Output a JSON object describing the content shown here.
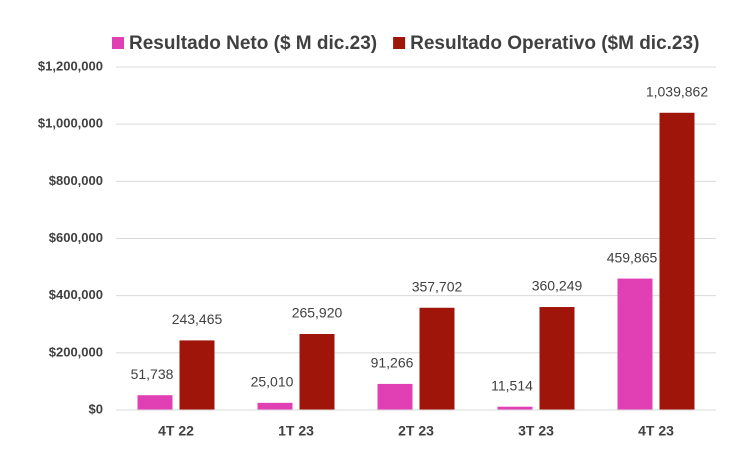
{
  "chart_data": {
    "type": "bar",
    "categories": [
      "4T 22",
      "1T 23",
      "2T 23",
      "3T 23",
      "4T 23"
    ],
    "series": [
      {
        "name": "Resultado Neto ($ M dic.23)",
        "color": "#e040b4",
        "values": [
          51738,
          25010,
          91266,
          11514,
          459865
        ],
        "value_labels": [
          "51,738",
          "25,010",
          "91,266",
          "11,514",
          "459,865"
        ]
      },
      {
        "name": "Resultado Operativo ($M dic.23)",
        "color": "#a0150a",
        "values": [
          243465,
          265920,
          357702,
          360249,
          1039862
        ],
        "value_labels": [
          "243,465",
          "265,920",
          "357,702",
          "360,249",
          "1,039,862"
        ]
      }
    ],
    "ylim": [
      0,
      1200000
    ],
    "yticks": [
      {
        "value": 0,
        "label": "$0"
      },
      {
        "value": 200000,
        "label": "$200,000"
      },
      {
        "value": 400000,
        "label": "$400,000"
      },
      {
        "value": 600000,
        "label": "$600,000"
      },
      {
        "value": 800000,
        "label": "$800,000"
      },
      {
        "value": 1000000,
        "label": "$1,000,000"
      },
      {
        "value": 1200000,
        "label": "$1,200,000"
      }
    ],
    "grid": true,
    "legend": "top"
  }
}
